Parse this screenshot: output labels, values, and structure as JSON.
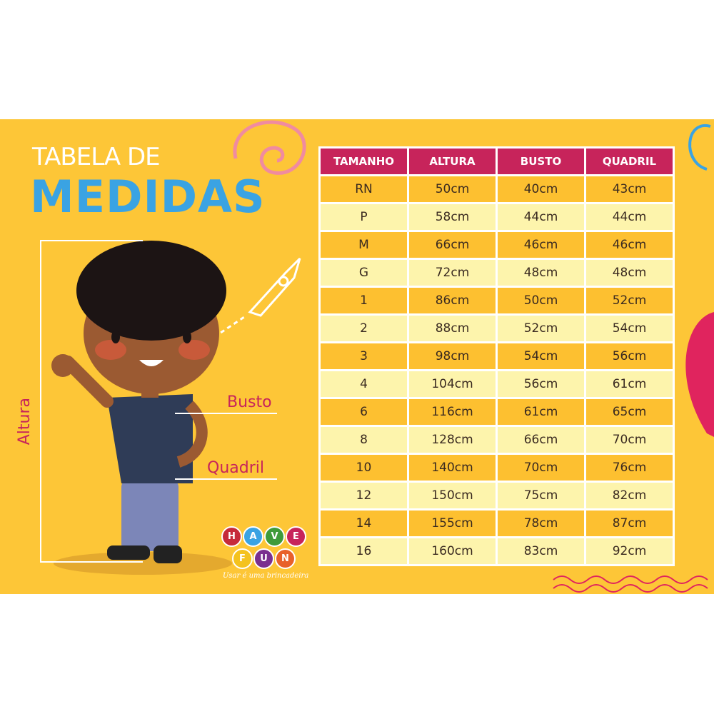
{
  "title": {
    "line1": "TABELA DE",
    "line2": "MEDIDAS"
  },
  "labels": {
    "altura": "Altura",
    "busto": "Busto",
    "quadril": "Quadril"
  },
  "brand": {
    "letters": [
      "H",
      "A",
      "V",
      "E",
      "F",
      "U",
      "N"
    ],
    "colors": [
      "#C62A3A",
      "#3AA3E3",
      "#3E9B3A",
      "#C7245B",
      "#F4C21E",
      "#7A2F8F",
      "#E8602A"
    ],
    "slogan": "Usar é uma brincadeira"
  },
  "table": {
    "headers": [
      "TAMANHO",
      "ALTURA",
      "BUSTO",
      "QUADRIL"
    ],
    "rows": [
      [
        "RN",
        "50cm",
        "40cm",
        "43cm"
      ],
      [
        "P",
        "58cm",
        "44cm",
        "44cm"
      ],
      [
        "M",
        "66cm",
        "46cm",
        "46cm"
      ],
      [
        "G",
        "72cm",
        "48cm",
        "48cm"
      ],
      [
        "1",
        "86cm",
        "50cm",
        "52cm"
      ],
      [
        "2",
        "88cm",
        "52cm",
        "54cm"
      ],
      [
        "3",
        "98cm",
        "54cm",
        "56cm"
      ],
      [
        "4",
        "104cm",
        "56cm",
        "61cm"
      ],
      [
        "6",
        "116cm",
        "61cm",
        "65cm"
      ],
      [
        "8",
        "128cm",
        "66cm",
        "70cm"
      ],
      [
        "10",
        "140cm",
        "70cm",
        "76cm"
      ],
      [
        "12",
        "150cm",
        "75cm",
        "82cm"
      ],
      [
        "14",
        "155cm",
        "78cm",
        "87cm"
      ],
      [
        "16",
        "160cm",
        "83cm",
        "92cm"
      ]
    ]
  },
  "colors": {
    "background": "#FDC637",
    "header": "#C7245B",
    "row_dark": "#FDC030",
    "row_light": "#FDF4AC",
    "title_blue": "#3AA3E3"
  }
}
